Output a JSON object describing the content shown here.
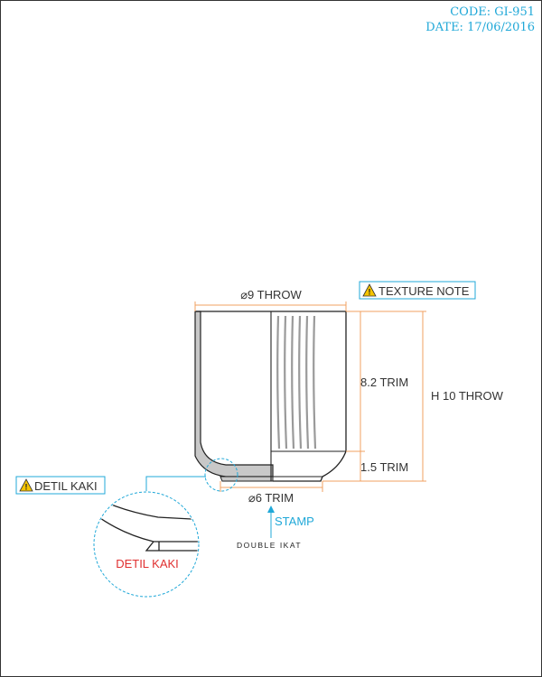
{
  "header": {
    "code": "CODE: GI-951",
    "date": "DATE: 17/06/2016"
  },
  "dimensions": {
    "diameter_throw": "⌀9 THROW",
    "height_top_trim": "8.2 TRIM",
    "height_total_throw": "H 10 THROW",
    "height_foot_trim": "1.5 TRIM",
    "diameter_foot_trim": "⌀6 TRIM"
  },
  "notes": {
    "texture_note": "TEXTURE NOTE",
    "detail_foot": "DETIL KAKI",
    "detail_foot_zoom": "DETIL KAKI",
    "stamp": "STAMP"
  },
  "brand": {
    "name": "DOUBLE IKAT"
  },
  "colors": {
    "dimension_line": "#f0a060",
    "callout": "#20a8d8",
    "detail_label": "#e03030",
    "warning_fill": "#f5c400",
    "glaze_grey": "#c8c8c8",
    "outline": "#222222"
  }
}
